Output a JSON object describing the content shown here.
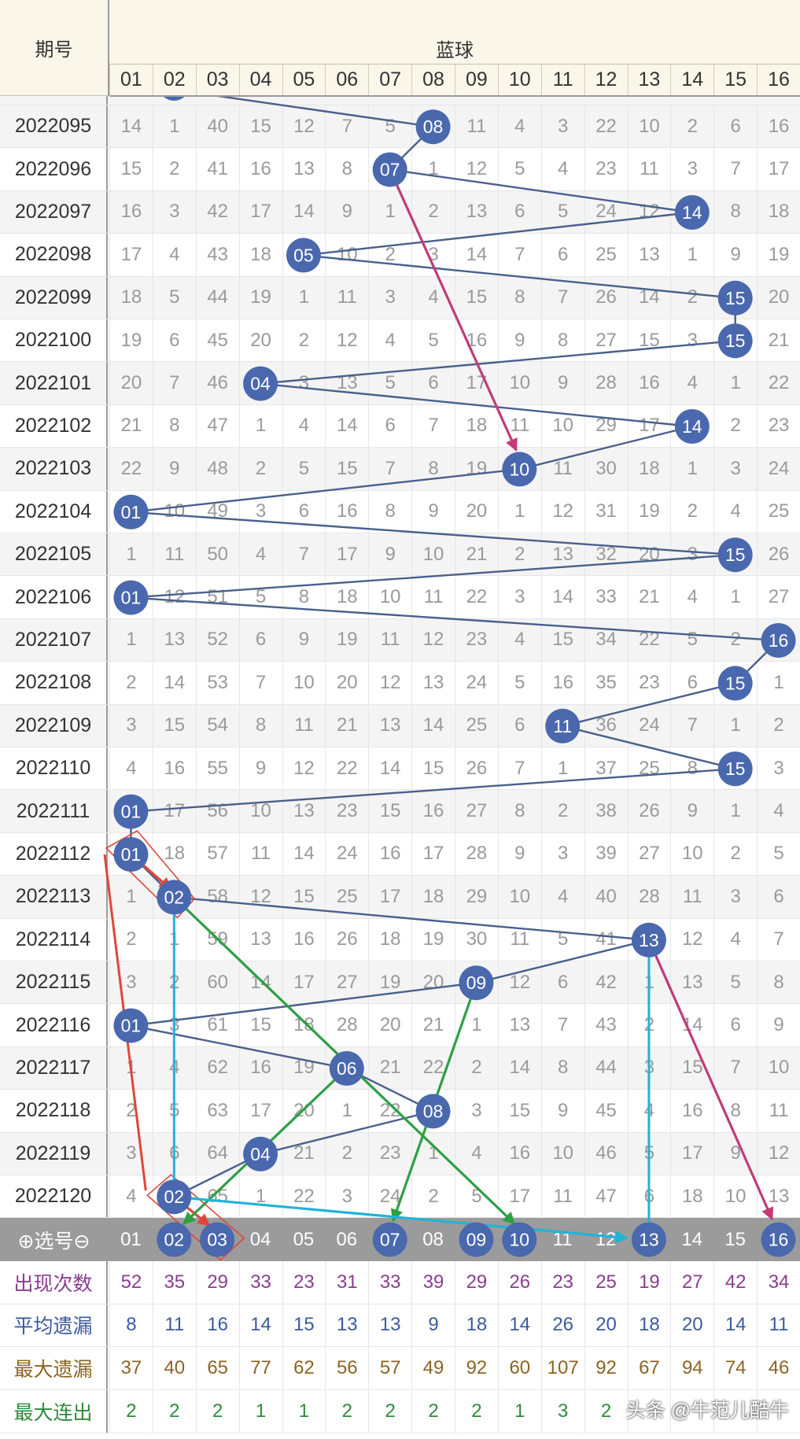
{
  "header": {
    "period_label": "期号",
    "group_label": "蓝球",
    "columns": [
      "01",
      "02",
      "03",
      "04",
      "05",
      "06",
      "07",
      "08",
      "09",
      "10",
      "11",
      "12",
      "13",
      "14",
      "15",
      "16"
    ]
  },
  "selector": {
    "label": "⊕选号⊖",
    "numbers": [
      "01",
      "02",
      "03",
      "04",
      "05",
      "06",
      "07",
      "08",
      "09",
      "10",
      "11",
      "12",
      "13",
      "14",
      "15",
      "16"
    ],
    "selected": [
      "02",
      "03",
      "07",
      "09",
      "10",
      "13",
      "16"
    ]
  },
  "stats": [
    {
      "label": "出现次数",
      "color": "#8a3d8f",
      "values": [
        "52",
        "35",
        "29",
        "33",
        "23",
        "31",
        "33",
        "39",
        "29",
        "26",
        "23",
        "25",
        "19",
        "27",
        "42",
        "34"
      ]
    },
    {
      "label": "平均遗漏",
      "color": "#3a5a9c",
      "values": [
        "8",
        "11",
        "16",
        "14",
        "15",
        "13",
        "13",
        "9",
        "18",
        "14",
        "26",
        "20",
        "18",
        "20",
        "14",
        "11"
      ]
    },
    {
      "label": "最大遗漏",
      "color": "#8b6424",
      "values": [
        "37",
        "40",
        "65",
        "77",
        "62",
        "56",
        "57",
        "49",
        "92",
        "60",
        "107",
        "92",
        "67",
        "94",
        "74",
        "46"
      ]
    },
    {
      "label": "最大连出",
      "color": "#2f8a3a",
      "values": [
        "2",
        "2",
        "2",
        "1",
        "1",
        "2",
        "2",
        "2",
        "2",
        "1",
        "3",
        "2",
        "",
        "",
        "",
        ""
      ]
    }
  ],
  "watermark": "头条 @牛范儿酷牛",
  "colors": {
    "ball": "#4a68ad",
    "main_line": "#4a5f8c",
    "magenta": "#c23b78",
    "red": "#e0463a",
    "green": "#2da043",
    "cyan": "#1fb4d6"
  },
  "chart_data": {
    "type": "table",
    "title": "",
    "xlabel": "蓝球",
    "ylabel": "期号",
    "categories": [
      "01",
      "02",
      "03",
      "04",
      "05",
      "06",
      "07",
      "08",
      "09",
      "10",
      "11",
      "12",
      "13",
      "14",
      "15",
      "16"
    ],
    "rows": [
      {
        "period": "2022095",
        "hit": "08",
        "cells": [
          "14",
          "1",
          "40",
          "15",
          "12",
          "7",
          "5",
          "08",
          "11",
          "4",
          "3",
          "22",
          "10",
          "2",
          "6",
          "16"
        ]
      },
      {
        "period": "2022096",
        "hit": "07",
        "cells": [
          "15",
          "2",
          "41",
          "16",
          "13",
          "8",
          "07",
          "1",
          "12",
          "5",
          "4",
          "23",
          "11",
          "3",
          "7",
          "17"
        ]
      },
      {
        "period": "2022097",
        "hit": "14",
        "cells": [
          "16",
          "3",
          "42",
          "17",
          "14",
          "9",
          "1",
          "2",
          "13",
          "6",
          "5",
          "24",
          "12",
          "14",
          "8",
          "18"
        ]
      },
      {
        "period": "2022098",
        "hit": "05",
        "cells": [
          "17",
          "4",
          "43",
          "18",
          "05",
          "10",
          "2",
          "3",
          "14",
          "7",
          "6",
          "25",
          "13",
          "1",
          "9",
          "19"
        ]
      },
      {
        "period": "2022099",
        "hit": "15",
        "cells": [
          "18",
          "5",
          "44",
          "19",
          "1",
          "11",
          "3",
          "4",
          "15",
          "8",
          "7",
          "26",
          "14",
          "2",
          "15",
          "20"
        ]
      },
      {
        "period": "2022100",
        "hit": "15",
        "cells": [
          "19",
          "6",
          "45",
          "20",
          "2",
          "12",
          "4",
          "5",
          "16",
          "9",
          "8",
          "27",
          "15",
          "3",
          "15",
          "21"
        ]
      },
      {
        "period": "2022101",
        "hit": "04",
        "cells": [
          "20",
          "7",
          "46",
          "04",
          "3",
          "13",
          "5",
          "6",
          "17",
          "10",
          "9",
          "28",
          "16",
          "4",
          "1",
          "22"
        ]
      },
      {
        "period": "2022102",
        "hit": "14",
        "cells": [
          "21",
          "8",
          "47",
          "1",
          "4",
          "14",
          "6",
          "7",
          "18",
          "11",
          "10",
          "29",
          "17",
          "14",
          "2",
          "23"
        ]
      },
      {
        "period": "2022103",
        "hit": "10",
        "cells": [
          "22",
          "9",
          "48",
          "2",
          "5",
          "15",
          "7",
          "8",
          "19",
          "10",
          "11",
          "30",
          "18",
          "1",
          "3",
          "24"
        ]
      },
      {
        "period": "2022104",
        "hit": "01",
        "cells": [
          "01",
          "10",
          "49",
          "3",
          "6",
          "16",
          "8",
          "9",
          "20",
          "1",
          "12",
          "31",
          "19",
          "2",
          "4",
          "25"
        ]
      },
      {
        "period": "2022105",
        "hit": "15",
        "cells": [
          "1",
          "11",
          "50",
          "4",
          "7",
          "17",
          "9",
          "10",
          "21",
          "2",
          "13",
          "32",
          "20",
          "3",
          "15",
          "26"
        ]
      },
      {
        "period": "2022106",
        "hit": "01",
        "cells": [
          "01",
          "12",
          "51",
          "5",
          "8",
          "18",
          "10",
          "11",
          "22",
          "3",
          "14",
          "33",
          "21",
          "4",
          "1",
          "27"
        ]
      },
      {
        "period": "2022107",
        "hit": "16",
        "cells": [
          "1",
          "13",
          "52",
          "6",
          "9",
          "19",
          "11",
          "12",
          "23",
          "4",
          "15",
          "34",
          "22",
          "5",
          "2",
          "16"
        ]
      },
      {
        "period": "2022108",
        "hit": "15",
        "cells": [
          "2",
          "14",
          "53",
          "7",
          "10",
          "20",
          "12",
          "13",
          "24",
          "5",
          "16",
          "35",
          "23",
          "6",
          "15",
          "1"
        ]
      },
      {
        "period": "2022109",
        "hit": "11",
        "cells": [
          "3",
          "15",
          "54",
          "8",
          "11",
          "21",
          "13",
          "14",
          "25",
          "6",
          "11",
          "36",
          "24",
          "7",
          "1",
          "2"
        ]
      },
      {
        "period": "2022110",
        "hit": "15",
        "cells": [
          "4",
          "16",
          "55",
          "9",
          "12",
          "22",
          "14",
          "15",
          "26",
          "7",
          "1",
          "37",
          "25",
          "8",
          "15",
          "3"
        ]
      },
      {
        "period": "2022111",
        "hit": "01",
        "cells": [
          "01",
          "17",
          "56",
          "10",
          "13",
          "23",
          "15",
          "16",
          "27",
          "8",
          "2",
          "38",
          "26",
          "9",
          "1",
          "4"
        ]
      },
      {
        "period": "2022112",
        "hit": "01",
        "cells": [
          "01",
          "18",
          "57",
          "11",
          "14",
          "24",
          "16",
          "17",
          "28",
          "9",
          "3",
          "39",
          "27",
          "10",
          "2",
          "5"
        ]
      },
      {
        "period": "2022113",
        "hit": "02",
        "cells": [
          "1",
          "02",
          "58",
          "12",
          "15",
          "25",
          "17",
          "18",
          "29",
          "10",
          "4",
          "40",
          "28",
          "11",
          "3",
          "6"
        ]
      },
      {
        "period": "2022114",
        "hit": "13",
        "cells": [
          "2",
          "1",
          "59",
          "13",
          "16",
          "26",
          "18",
          "19",
          "30",
          "11",
          "5",
          "41",
          "13",
          "12",
          "4",
          "7"
        ]
      },
      {
        "period": "2022115",
        "hit": "09",
        "cells": [
          "3",
          "2",
          "60",
          "14",
          "17",
          "27",
          "19",
          "20",
          "09",
          "12",
          "6",
          "42",
          "1",
          "13",
          "5",
          "8"
        ]
      },
      {
        "period": "2022116",
        "hit": "01",
        "cells": [
          "01",
          "3",
          "61",
          "15",
          "18",
          "28",
          "20",
          "21",
          "1",
          "13",
          "7",
          "43",
          "2",
          "14",
          "6",
          "9"
        ]
      },
      {
        "period": "2022117",
        "hit": "06",
        "cells": [
          "1",
          "4",
          "62",
          "16",
          "19",
          "06",
          "21",
          "22",
          "2",
          "14",
          "8",
          "44",
          "3",
          "15",
          "7",
          "10"
        ]
      },
      {
        "period": "2022118",
        "hit": "08",
        "cells": [
          "2",
          "5",
          "63",
          "17",
          "20",
          "1",
          "22",
          "08",
          "3",
          "15",
          "9",
          "45",
          "4",
          "16",
          "8",
          "11"
        ]
      },
      {
        "period": "2022119",
        "hit": "04",
        "cells": [
          "3",
          "6",
          "64",
          "04",
          "21",
          "2",
          "23",
          "1",
          "4",
          "16",
          "10",
          "46",
          "5",
          "17",
          "9",
          "12"
        ]
      },
      {
        "period": "2022120",
        "hit": "02",
        "cells": [
          "4",
          "02",
          "65",
          "1",
          "22",
          "3",
          "24",
          "2",
          "5",
          "17",
          "11",
          "47",
          "6",
          "18",
          "10",
          "13"
        ]
      }
    ]
  }
}
